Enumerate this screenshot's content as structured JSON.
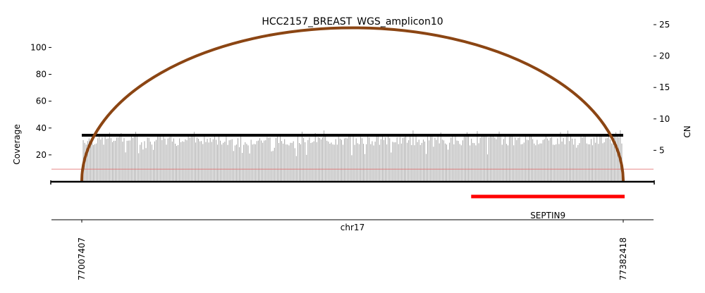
{
  "chart_data": {
    "type": "bar",
    "title": "HCC2157_BREAST_WGS_amplicon10",
    "xlabel": "chr17",
    "ylabel_left": "Coverage",
    "ylabel_right": "CN",
    "x_range": [
      77007407,
      77382418
    ],
    "x_tick_labels": [
      "77007407",
      "77382418"
    ],
    "left_axis": {
      "ylim": [
        0,
        117
      ],
      "ticks": [
        20,
        40,
        60,
        80,
        100
      ]
    },
    "right_axis": {
      "ylim": [
        0,
        25
      ],
      "ticks": [
        5,
        10,
        15,
        20,
        25
      ]
    },
    "coverage_bins": 370,
    "coverage_base": 31,
    "coverage_spread": 8,
    "colors": {
      "coverage": "#999999",
      "segment": "#000000",
      "breakpoint_arc": "#8b4513",
      "threshold_line": "#e06060",
      "gene": "#ff0000"
    },
    "cn_segment": {
      "x_start": 77007407,
      "x_end": 77382418,
      "cn": 7.4
    },
    "threshold_cn": 2.0,
    "breakpoint_arc": {
      "x_start": 77007407,
      "x_end": 77382418,
      "peak_cn": 24.5
    },
    "genes": [
      {
        "name": "SEPTIN9",
        "x_start": 77281000,
        "x_end": 77382418
      }
    ]
  }
}
